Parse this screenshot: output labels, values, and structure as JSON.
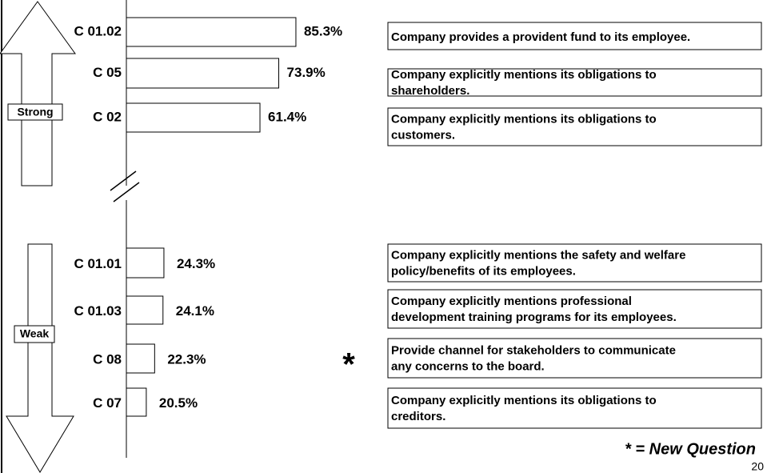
{
  "chart_data": {
    "type": "bar",
    "orientation": "horizontal",
    "categories": [
      "C 01.02",
      "C 05",
      "C 02",
      "C 01.01",
      "C 01.03",
      "C 08",
      "C 07"
    ],
    "values": [
      85.3,
      73.9,
      61.4,
      24.3,
      24.1,
      22.3,
      20.5
    ],
    "value_labels": [
      "85.3%",
      "73.9%",
      "61.4%",
      "24.3%",
      "24.1%",
      "22.3%",
      "20.5%"
    ],
    "color": "#ffffff",
    "descriptions": [
      [
        "Company provides a provident fund to its employee."
      ],
      [
        "Company explicitly mentions its obligations to",
        "shareholders."
      ],
      [
        "Company explicitly mentions its obligations to",
        "customers."
      ],
      [
        "Company explicitly mentions the safety and welfare",
        "policy/benefits of its employees."
      ],
      [
        "Company explicitly mentions professional",
        "development training programs for its employees."
      ],
      [
        "Provide channel for stakeholders to communicate",
        "any concerns to the board."
      ],
      [
        "Company explicitly mentions its obligations to",
        "creditors."
      ]
    ],
    "strong_label": "Strong",
    "weak_label": "Weak",
    "annotations": [
      {
        "category": "C 08",
        "text": "*"
      }
    ],
    "note": "* = New Question",
    "page_number": "20"
  }
}
